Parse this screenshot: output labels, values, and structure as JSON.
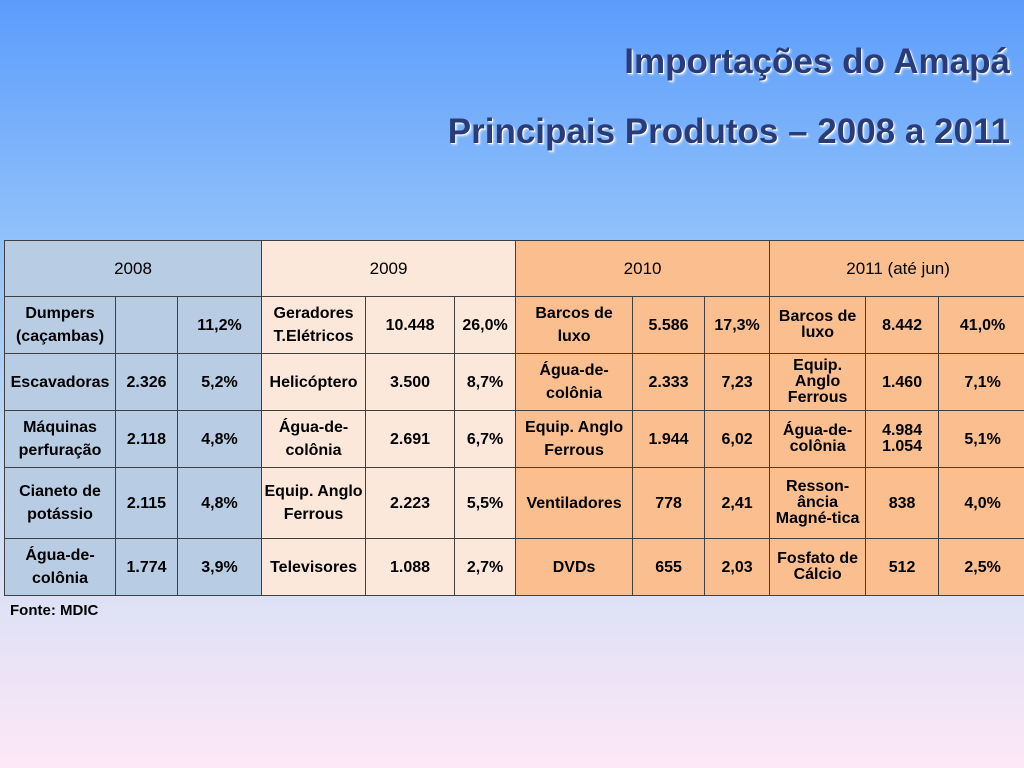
{
  "title_line1": "Importações do Amapá",
  "title_line2": "Principais Produtos – 2008 a 2011",
  "years": [
    "2008",
    "2009",
    "2010",
    "2011 (até jun)"
  ],
  "rows": [
    {
      "y2008": {
        "product": "Dumpers (caçambas)",
        "value": "",
        "pct": "11,2%"
      },
      "y2009": {
        "product": "Geradores T.Elétricos",
        "value": "10.448",
        "pct": "26,0%"
      },
      "y2010": {
        "product": "Barcos de luxo",
        "value": "5.586",
        "pct": "17,3%"
      },
      "y2011": {
        "product": "Barcos de luxo",
        "value": "8.442",
        "pct": "41,0%"
      }
    },
    {
      "y2008": {
        "product": "Escavadoras",
        "value": "2.326",
        "pct": "5,2%"
      },
      "y2009": {
        "product": "Helicóptero",
        "value": "3.500",
        "pct": "8,7%"
      },
      "y2010": {
        "product": "Água-de-colônia",
        "value": "2.333",
        "pct": "7,23"
      },
      "y2011": {
        "product": "Equip. Anglo Ferrous",
        "value": "1.460",
        "pct": "7,1%"
      }
    },
    {
      "y2008": {
        "product": "Máquinas perfuração",
        "value": "2.118",
        "pct": "4,8%"
      },
      "y2009": {
        "product": "Água-de-colônia",
        "value": "2.691",
        "pct": "6,7%"
      },
      "y2010": {
        "product": "Equip. Anglo Ferrous",
        "value": "1.944",
        "pct": "6,02"
      },
      "y2011": {
        "product": "Água-de-colônia",
        "value": "4.984 1.054",
        "pct": "5,1%"
      }
    },
    {
      "y2008": {
        "product": "Cianeto de potássio",
        "value": "2.115",
        "pct": "4,8%"
      },
      "y2009": {
        "product": "Equip. Anglo Ferrous",
        "value": "2.223",
        "pct": "5,5%"
      },
      "y2010": {
        "product": "Ventiladores",
        "value": "778",
        "pct": "2,41"
      },
      "y2011": {
        "product": "Resson-ância Magné-tica",
        "value": "838",
        "pct": "4,0%"
      }
    },
    {
      "y2008": {
        "product": "Água-de-colônia",
        "value": "1.774",
        "pct": "3,9%"
      },
      "y2009": {
        "product": "Televisores",
        "value": "1.088",
        "pct": "2,7%"
      },
      "y2010": {
        "product": "DVDs",
        "value": "655",
        "pct": "2,03"
      },
      "y2011": {
        "product": "Fosfato de Cálcio",
        "value": "512",
        "pct": "2,5%"
      }
    }
  ],
  "source": "Fonte: MDIC",
  "colors": {
    "y2008": "#b8cce4",
    "y2009": "#fce8da",
    "y2010": "#fbbf8f",
    "y2011": "#fbbf8f",
    "title": "#2a3c78"
  }
}
